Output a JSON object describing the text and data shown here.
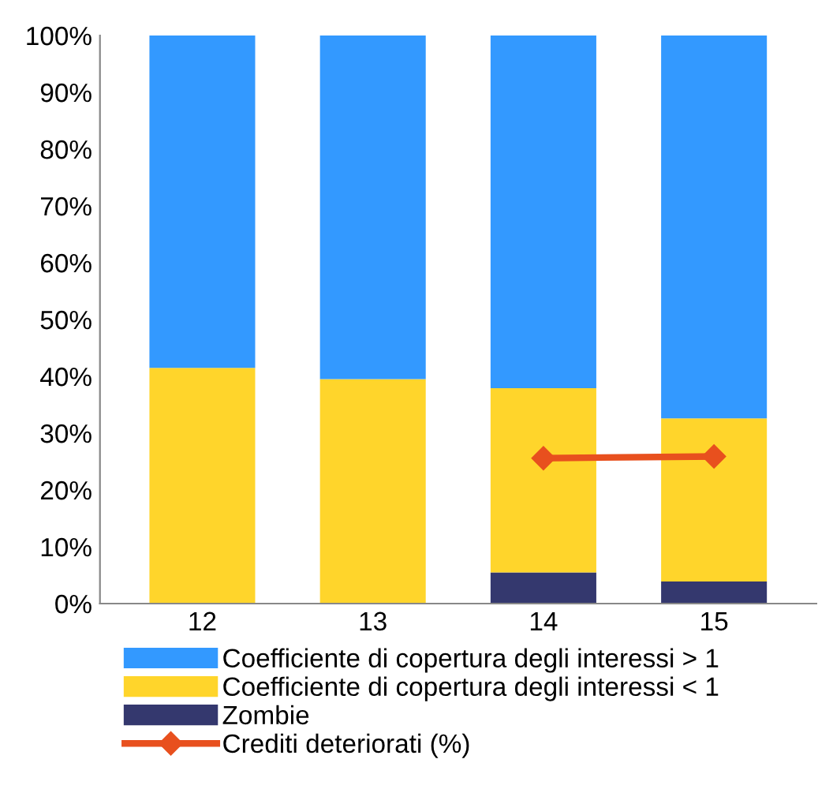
{
  "chart_data": {
    "type": "bar",
    "stacked": true,
    "categories": [
      "12",
      "13",
      "14",
      "15"
    ],
    "series": [
      {
        "name": "Zombie",
        "color": "#34386e",
        "values": [
          0,
          0,
          5.5,
          3.9
        ]
      },
      {
        "name": "Coefficiente di copertura degli interessi < 1",
        "color": "#ffd52b",
        "values": [
          41.5,
          39.5,
          32.4,
          28.7
        ]
      },
      {
        "name": "Coefficiente di copertura degli interessi > 1",
        "color": "#3399ff",
        "values": [
          58.5,
          60.5,
          62.1,
          67.4
        ]
      },
      {
        "name": "Crediti deteriorati (%)",
        "type": "line",
        "color": "#e8501e",
        "marker": "diamond",
        "values": [
          null,
          null,
          25.6,
          25.9
        ]
      }
    ],
    "ylim": [
      0,
      100
    ],
    "yticks": [
      {
        "value": 0,
        "label": "0%"
      },
      {
        "value": 10,
        "label": "10%"
      },
      {
        "value": 20,
        "label": "20%"
      },
      {
        "value": 30,
        "label": "30%"
      },
      {
        "value": 40,
        "label": "40%"
      },
      {
        "value": 50,
        "label": "50%"
      },
      {
        "value": 60,
        "label": "60%"
      },
      {
        "value": 70,
        "label": "70%"
      },
      {
        "value": 80,
        "label": "80%"
      },
      {
        "value": 90,
        "label": "90%"
      },
      {
        "value": 100,
        "label": "100%"
      }
    ],
    "grid": false,
    "legend": "bottom"
  }
}
